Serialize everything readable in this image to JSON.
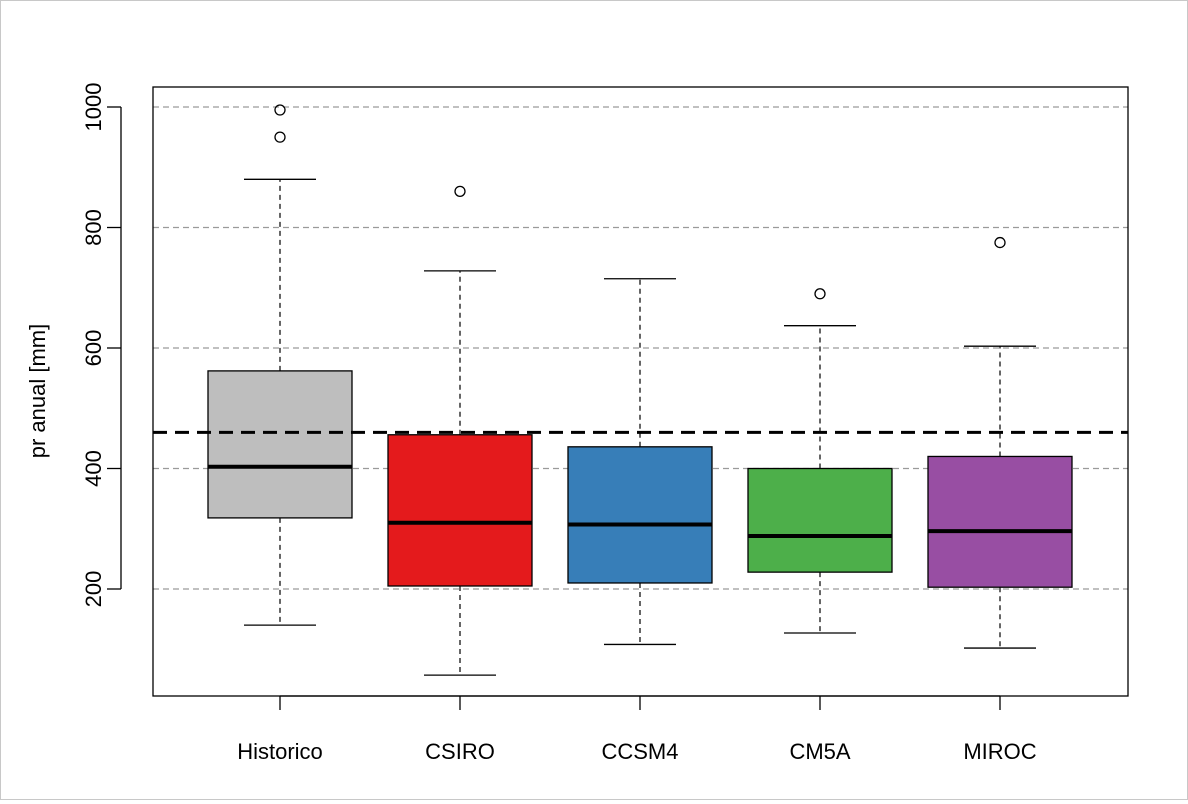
{
  "chart_data": {
    "type": "boxplot",
    "title": "",
    "xlabel": "",
    "ylabel": "pr anual [mm]",
    "ylim": [
      0,
      1030
    ],
    "yticks": [
      200,
      400,
      600,
      800,
      1000
    ],
    "grid": "horizontal dashed",
    "reference_line": {
      "value": 460,
      "style": "dashed"
    },
    "categories": [
      "Historico",
      "CSIRO",
      "CCSM4",
      "CM5A",
      "MIROC"
    ],
    "boxes": [
      {
        "category": "Historico",
        "color": "#BEBEBE",
        "whisker_low": 140,
        "q1": 318,
        "median": 403,
        "q3": 562,
        "whisker_high": 880,
        "outliers": [
          950,
          995
        ]
      },
      {
        "category": "CSIRO",
        "color": "#E41A1C",
        "whisker_low": 57,
        "q1": 205,
        "median": 310,
        "q3": 456,
        "whisker_high": 728,
        "outliers": [
          860
        ]
      },
      {
        "category": "CCSM4",
        "color": "#377EB8",
        "whisker_low": 108,
        "q1": 210,
        "median": 307,
        "q3": 436,
        "whisker_high": 715,
        "outliers": []
      },
      {
        "category": "CM5A",
        "color": "#4DAF4A",
        "whisker_low": 127,
        "q1": 228,
        "median": 288,
        "q3": 400,
        "whisker_high": 637,
        "outliers": [
          690
        ]
      },
      {
        "category": "MIROC",
        "color": "#984EA3",
        "whisker_low": 102,
        "q1": 203,
        "median": 296,
        "q3": 420,
        "whisker_high": 603,
        "outliers": [
          775
        ]
      }
    ]
  }
}
